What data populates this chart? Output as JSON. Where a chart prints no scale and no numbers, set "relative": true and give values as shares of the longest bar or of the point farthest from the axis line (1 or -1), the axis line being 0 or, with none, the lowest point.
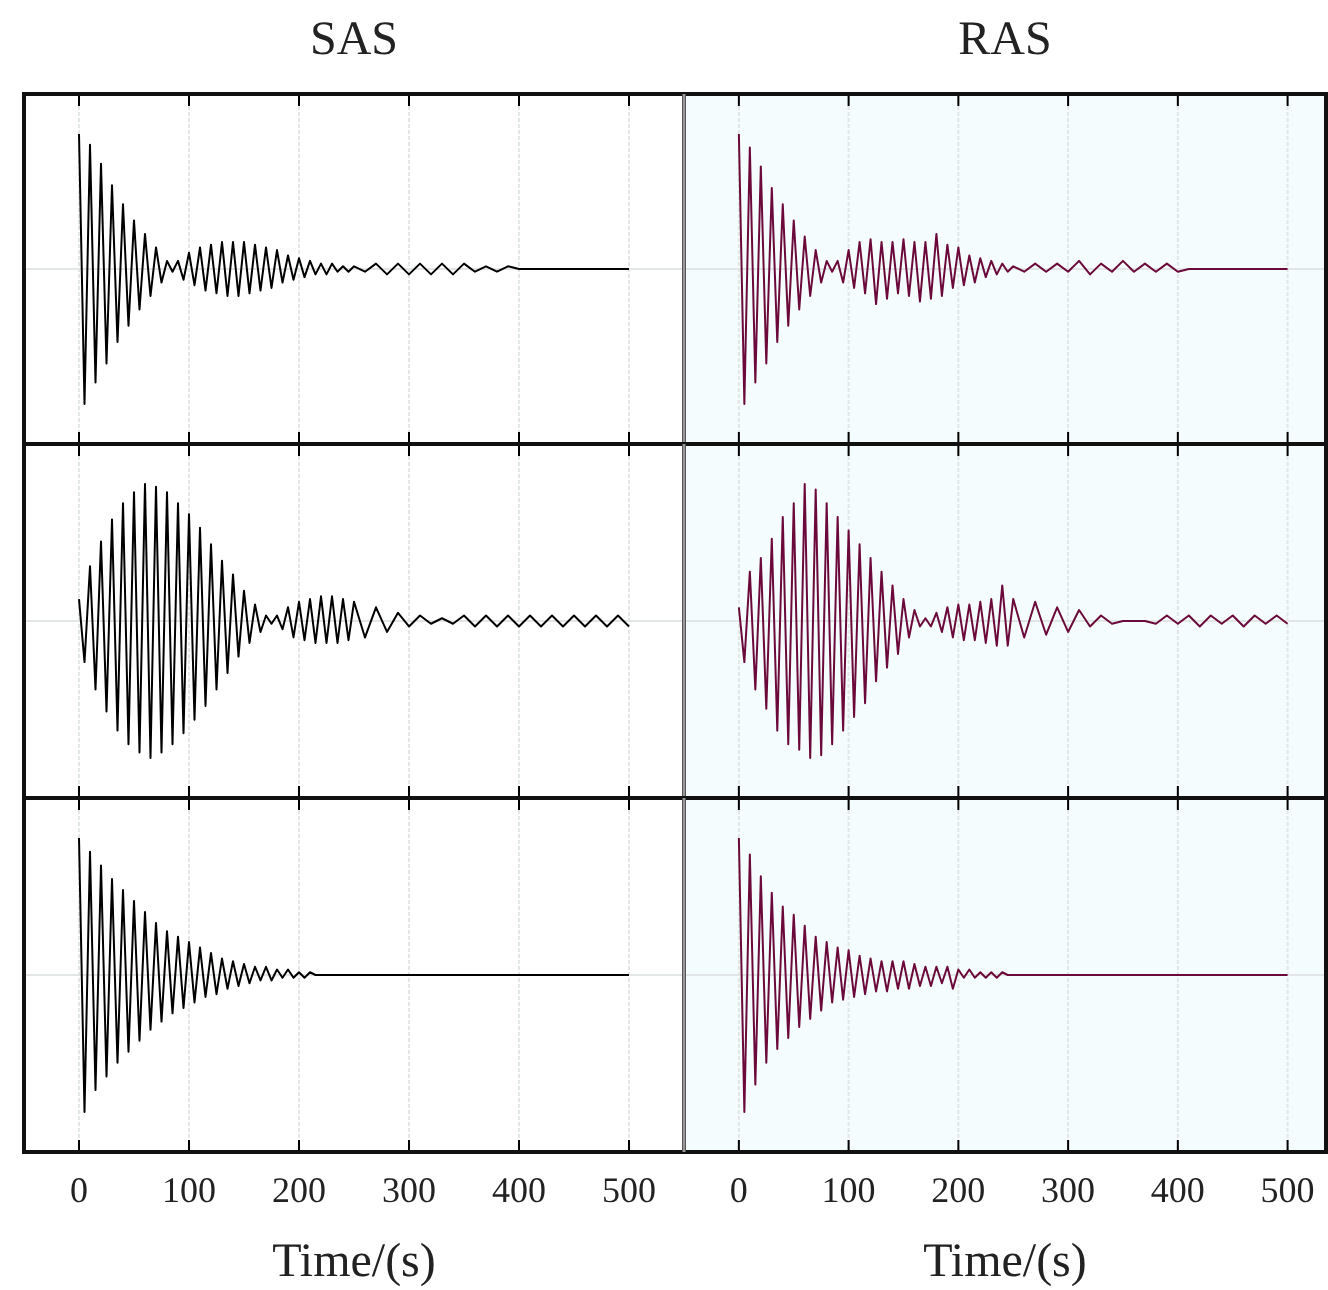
{
  "chart_data": [
    {
      "type": "line",
      "title": "SAS",
      "relative": true,
      "xlim": [
        -50,
        550
      ],
      "xticks": [
        0,
        100,
        200,
        300,
        400,
        500
      ],
      "grid": "x",
      "tick_labels": false,
      "x": [
        0,
        5,
        10,
        15,
        20,
        25,
        30,
        35,
        40,
        45,
        50,
        55,
        60,
        65,
        70,
        75,
        80,
        85,
        90,
        95,
        100,
        105,
        110,
        115,
        120,
        125,
        130,
        135,
        140,
        145,
        150,
        155,
        160,
        165,
        170,
        175,
        180,
        185,
        190,
        195,
        200,
        205,
        210,
        215,
        220,
        225,
        230,
        235,
        240,
        245,
        250,
        260,
        270,
        280,
        290,
        300,
        310,
        320,
        330,
        340,
        350,
        360,
        370,
        380,
        390,
        400,
        410,
        420,
        430,
        440,
        450,
        460,
        470,
        480,
        490,
        500
      ],
      "series": [
        {
          "color": "#000000",
          "values": [
            1,
            -1,
            0.92,
            -0.84,
            0.78,
            -0.7,
            0.62,
            -0.54,
            0.48,
            -0.42,
            0.36,
            -0.3,
            0.26,
            -0.2,
            0.16,
            -0.1,
            0.06,
            -0.02,
            0.06,
            -0.08,
            0.12,
            -0.12,
            0.16,
            -0.16,
            0.18,
            -0.18,
            0.2,
            -0.2,
            0.2,
            -0.2,
            0.2,
            -0.18,
            0.18,
            -0.16,
            0.16,
            -0.14,
            0.14,
            -0.1,
            0.1,
            -0.08,
            0.08,
            -0.06,
            0.06,
            -0.04,
            0.04,
            -0.04,
            0.04,
            -0.02,
            0.02,
            -0.02,
            0.02,
            -0.02,
            0.04,
            -0.04,
            0.04,
            -0.04,
            0.04,
            -0.04,
            0.04,
            -0.04,
            0.04,
            -0.02,
            0.02,
            -0.02,
            0.02,
            0,
            0,
            0,
            0,
            0,
            0,
            0,
            0,
            0,
            0,
            0
          ]
        }
      ]
    },
    {
      "type": "line",
      "title": "RAS",
      "relative": true,
      "xlim": [
        -50,
        535
      ],
      "xticks": [
        0,
        100,
        200,
        300,
        400,
        500
      ],
      "grid": "x",
      "tick_labels": false,
      "x": [
        0,
        5,
        10,
        15,
        20,
        25,
        30,
        35,
        40,
        45,
        50,
        55,
        60,
        65,
        70,
        75,
        80,
        85,
        90,
        95,
        100,
        105,
        110,
        115,
        120,
        125,
        130,
        135,
        140,
        145,
        150,
        155,
        160,
        165,
        170,
        175,
        180,
        185,
        190,
        195,
        200,
        205,
        210,
        215,
        220,
        225,
        230,
        235,
        240,
        245,
        250,
        260,
        270,
        280,
        290,
        300,
        310,
        320,
        330,
        340,
        350,
        360,
        370,
        380,
        390,
        400,
        410,
        420,
        430,
        440,
        450,
        460,
        470,
        480,
        490,
        500
      ],
      "series": [
        {
          "color": "#6b0a3a",
          "values": [
            1,
            -1,
            0.9,
            -0.84,
            0.76,
            -0.7,
            0.6,
            -0.54,
            0.48,
            -0.42,
            0.36,
            -0.3,
            0.24,
            -0.2,
            0.14,
            -0.1,
            0.06,
            -0.02,
            0.06,
            -0.1,
            0.14,
            -0.14,
            0.2,
            -0.18,
            0.22,
            -0.26,
            0.2,
            -0.22,
            0.2,
            -0.18,
            0.22,
            -0.2,
            0.2,
            -0.24,
            0.2,
            -0.22,
            0.26,
            -0.2,
            0.18,
            -0.14,
            0.16,
            -0.12,
            0.1,
            -0.1,
            0.08,
            -0.06,
            0.06,
            -0.04,
            0.04,
            -0.02,
            0.02,
            -0.02,
            0.04,
            -0.02,
            0.04,
            -0.02,
            0.06,
            -0.04,
            0.04,
            -0.02,
            0.06,
            -0.02,
            0.04,
            -0.02,
            0.04,
            -0.02,
            0,
            0,
            0,
            0,
            0,
            0,
            0,
            0,
            0,
            0
          ]
        }
      ]
    },
    {
      "type": "line",
      "relative": true,
      "xlim": [
        -50,
        550
      ],
      "xticks": [
        0,
        100,
        200,
        300,
        400,
        500
      ],
      "grid": "x",
      "tick_labels": false,
      "x": [
        0,
        5,
        10,
        15,
        20,
        25,
        30,
        35,
        40,
        45,
        50,
        55,
        60,
        65,
        70,
        75,
        80,
        85,
        90,
        95,
        100,
        105,
        110,
        115,
        120,
        125,
        130,
        135,
        140,
        145,
        150,
        155,
        160,
        165,
        170,
        175,
        180,
        185,
        190,
        195,
        200,
        205,
        210,
        215,
        220,
        225,
        230,
        235,
        240,
        245,
        250,
        260,
        270,
        280,
        290,
        300,
        310,
        320,
        330,
        340,
        350,
        360,
        370,
        380,
        390,
        400,
        410,
        420,
        430,
        440,
        450,
        460,
        470,
        480,
        490,
        500
      ],
      "series": [
        {
          "color": "#000000",
          "values": [
            0.16,
            -0.3,
            0.4,
            -0.5,
            0.58,
            -0.66,
            0.74,
            -0.8,
            0.86,
            -0.9,
            0.94,
            -0.96,
            1,
            -1,
            0.98,
            -0.96,
            0.94,
            -0.9,
            0.86,
            -0.82,
            0.78,
            -0.72,
            0.68,
            -0.62,
            0.56,
            -0.5,
            0.44,
            -0.38,
            0.34,
            -0.26,
            0.22,
            -0.16,
            0.12,
            -0.08,
            0.04,
            -0.02,
            0.04,
            -0.06,
            0.1,
            -0.12,
            0.14,
            -0.14,
            0.16,
            -0.16,
            0.18,
            -0.16,
            0.18,
            -0.16,
            0.16,
            -0.14,
            0.14,
            -0.12,
            0.1,
            -0.08,
            0.06,
            -0.04,
            0.04,
            -0.02,
            0.02,
            -0.02,
            0.04,
            -0.04,
            0.04,
            -0.04,
            0.04,
            -0.04,
            0.04,
            -0.04,
            0.04,
            -0.04,
            0.04,
            -0.04,
            0.04,
            -0.04,
            0.04,
            -0.04
          ]
        }
      ]
    },
    {
      "type": "line",
      "relative": true,
      "xlim": [
        -50,
        535
      ],
      "xticks": [
        0,
        100,
        200,
        300,
        400,
        500
      ],
      "grid": "x",
      "tick_labels": false,
      "x": [
        0,
        5,
        10,
        15,
        20,
        25,
        30,
        35,
        40,
        45,
        50,
        55,
        60,
        65,
        70,
        75,
        80,
        85,
        90,
        95,
        100,
        105,
        110,
        115,
        120,
        125,
        130,
        135,
        140,
        145,
        150,
        155,
        160,
        165,
        170,
        175,
        180,
        185,
        190,
        195,
        200,
        205,
        210,
        215,
        220,
        225,
        230,
        235,
        240,
        245,
        250,
        260,
        270,
        280,
        290,
        300,
        310,
        320,
        330,
        340,
        350,
        360,
        370,
        380,
        390,
        400,
        410,
        420,
        430,
        440,
        450,
        460,
        470,
        480,
        490,
        500
      ],
      "series": [
        {
          "color": "#6b0a3a",
          "values": [
            0.1,
            -0.3,
            0.36,
            -0.5,
            0.46,
            -0.64,
            0.6,
            -0.8,
            0.76,
            -0.9,
            0.86,
            -0.94,
            1,
            -1,
            0.96,
            -0.98,
            0.86,
            -0.9,
            0.76,
            -0.8,
            0.66,
            -0.7,
            0.56,
            -0.6,
            0.46,
            -0.44,
            0.36,
            -0.34,
            0.26,
            -0.24,
            0.16,
            -0.12,
            0.08,
            -0.04,
            0.02,
            -0.04,
            0.06,
            -0.08,
            0.1,
            -0.12,
            0.12,
            -0.14,
            0.12,
            -0.14,
            0.14,
            -0.16,
            0.16,
            -0.18,
            0.26,
            -0.18,
            0.16,
            -0.12,
            0.14,
            -0.1,
            0.1,
            -0.08,
            0.08,
            -0.04,
            0.04,
            -0.02,
            0,
            0,
            0,
            -0.02,
            0.04,
            -0.02,
            0.04,
            -0.04,
            0.04,
            -0.02,
            0.04,
            -0.04,
            0.04,
            -0.02,
            0.04,
            -0.02
          ]
        }
      ]
    },
    {
      "type": "line",
      "xlabel": "Time/(s)",
      "relative": true,
      "xlim": [
        -50,
        550
      ],
      "xticks": [
        0,
        100,
        200,
        300,
        400,
        500
      ],
      "grid": "x",
      "tick_labels": "x",
      "x": [
        0,
        5,
        10,
        15,
        20,
        25,
        30,
        35,
        40,
        45,
        50,
        55,
        60,
        65,
        70,
        75,
        80,
        85,
        90,
        95,
        100,
        105,
        110,
        115,
        120,
        125,
        130,
        135,
        140,
        145,
        150,
        155,
        160,
        165,
        170,
        175,
        180,
        185,
        190,
        195,
        200,
        205,
        210,
        215,
        220,
        225,
        230,
        235,
        240,
        245,
        250,
        260,
        270,
        280,
        290,
        300,
        310,
        320,
        330,
        340,
        350,
        360,
        370,
        380,
        390,
        400,
        410,
        420,
        430,
        440,
        450,
        460,
        470,
        480,
        490,
        500
      ],
      "series": [
        {
          "color": "#000000",
          "values": [
            1,
            -1,
            0.9,
            -0.84,
            0.8,
            -0.74,
            0.7,
            -0.64,
            0.62,
            -0.56,
            0.54,
            -0.48,
            0.46,
            -0.4,
            0.38,
            -0.34,
            0.32,
            -0.28,
            0.28,
            -0.24,
            0.24,
            -0.2,
            0.2,
            -0.16,
            0.16,
            -0.14,
            0.12,
            -0.1,
            0.1,
            -0.08,
            0.08,
            -0.06,
            0.06,
            -0.04,
            0.06,
            -0.04,
            0.04,
            -0.02,
            0.04,
            -0.02,
            0.02,
            -0.02,
            0.02,
            0,
            0,
            0,
            0,
            0,
            0,
            0,
            0,
            0,
            0,
            0,
            0,
            0,
            0,
            0,
            0,
            0,
            0,
            0,
            0,
            0,
            0,
            0,
            0,
            0,
            0,
            0,
            0,
            0,
            0,
            0,
            0,
            0
          ]
        }
      ]
    },
    {
      "type": "line",
      "xlabel": "Time/(s)",
      "relative": true,
      "xlim": [
        -50,
        535
      ],
      "xticks": [
        0,
        100,
        200,
        300,
        400,
        500
      ],
      "grid": "x",
      "tick_labels": "x",
      "x": [
        0,
        5,
        10,
        15,
        20,
        25,
        30,
        35,
        40,
        45,
        50,
        55,
        60,
        65,
        70,
        75,
        80,
        85,
        90,
        95,
        100,
        105,
        110,
        115,
        120,
        125,
        130,
        135,
        140,
        145,
        150,
        155,
        160,
        165,
        170,
        175,
        180,
        185,
        190,
        195,
        200,
        205,
        210,
        215,
        220,
        225,
        230,
        235,
        240,
        245,
        250,
        260,
        270,
        280,
        290,
        300,
        310,
        320,
        330,
        340,
        350,
        360,
        370,
        380,
        390,
        400,
        410,
        420,
        430,
        440,
        450,
        460,
        470,
        480,
        490,
        500
      ],
      "series": [
        {
          "color": "#6b0a3a",
          "values": [
            1,
            -1,
            0.88,
            -0.8,
            0.72,
            -0.64,
            0.6,
            -0.54,
            0.5,
            -0.46,
            0.44,
            -0.38,
            0.36,
            -0.32,
            0.28,
            -0.26,
            0.24,
            -0.2,
            0.2,
            -0.18,
            0.18,
            -0.16,
            0.14,
            -0.14,
            0.12,
            -0.12,
            0.1,
            -0.12,
            0.1,
            -0.1,
            0.1,
            -0.1,
            0.08,
            -0.08,
            0.06,
            -0.08,
            0.06,
            -0.06,
            0.06,
            -0.1,
            0.04,
            -0.02,
            0.04,
            -0.02,
            0.02,
            -0.02,
            0.02,
            -0.02,
            0.02,
            0,
            0,
            0,
            0,
            0,
            0,
            0,
            0,
            0,
            0,
            0,
            0,
            0,
            0,
            0,
            0,
            0,
            0,
            0,
            0,
            0,
            0,
            0,
            0,
            0,
            0,
            0
          ]
        }
      ]
    }
  ]
}
